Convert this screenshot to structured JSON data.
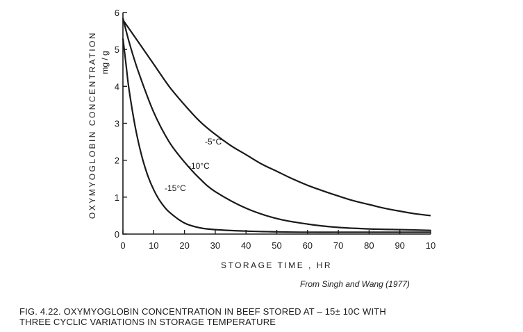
{
  "chart_data": {
    "type": "line",
    "ylabel": "OXYMYOGLOBIN CONCENTRATION",
    "yunit": "mg / g",
    "xlabel": "STORAGE TIME , HR",
    "xlim": [
      0,
      100
    ],
    "ylim": [
      0,
      6
    ],
    "grid": false,
    "x_tick_labels": [
      "0",
      "10",
      "20",
      "30",
      "40",
      "50",
      "60",
      "70",
      "80",
      "90",
      "10"
    ],
    "y_tick_labels": [
      "0",
      "1",
      "2",
      "3",
      "4",
      "5",
      "6"
    ],
    "series": [
      {
        "name": "-5°C",
        "x": [
          0,
          5,
          10,
          15,
          20,
          25,
          30,
          35,
          40,
          45,
          50,
          55,
          60,
          65,
          70,
          75,
          80,
          85,
          90,
          95,
          100
        ],
        "y": [
          5.8,
          5.2,
          4.6,
          4.0,
          3.5,
          3.05,
          2.7,
          2.4,
          2.15,
          1.9,
          1.7,
          1.5,
          1.32,
          1.17,
          1.03,
          0.9,
          0.8,
          0.7,
          0.62,
          0.55,
          0.5
        ]
      },
      {
        "name": "-10°C",
        "x": [
          0,
          2,
          5,
          10,
          15,
          20,
          25,
          30,
          40,
          50,
          60,
          70,
          80,
          90,
          100
        ],
        "y": [
          5.85,
          5.2,
          4.4,
          3.3,
          2.5,
          1.95,
          1.5,
          1.15,
          0.7,
          0.42,
          0.27,
          0.18,
          0.14,
          0.12,
          0.1
        ]
      },
      {
        "name": "-15°C",
        "x": [
          0,
          1,
          2,
          4,
          6,
          8,
          10,
          12,
          15,
          20,
          25,
          30,
          40,
          50,
          60,
          70,
          80,
          90,
          100
        ],
        "y": [
          5.3,
          4.6,
          3.9,
          2.9,
          2.15,
          1.6,
          1.2,
          0.9,
          0.6,
          0.3,
          0.17,
          0.12,
          0.08,
          0.06,
          0.05,
          0.05,
          0.05,
          0.05,
          0.05
        ]
      }
    ]
  },
  "source_note": "From Singh and Wang (1977)",
  "caption_line1": "FIG. 4.22. OXYMYOGLOBIN CONCENTRATION IN BEEF STORED AT – 15± 10C WITH",
  "caption_line2": "THREE CYCLIC VARIATIONS IN STORAGE TEMPERATURE"
}
